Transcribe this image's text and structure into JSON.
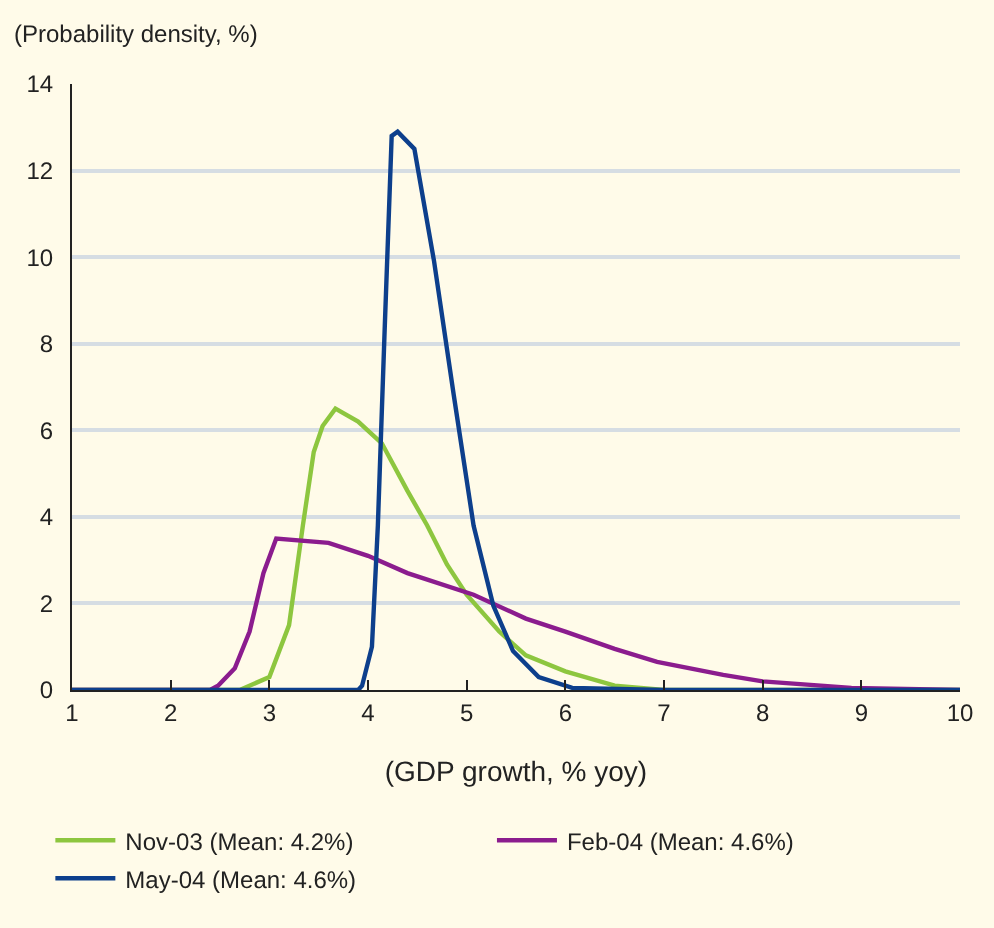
{
  "chart_data": {
    "type": "line",
    "ylabel": "(Probability density, %)",
    "xlabel": "(GDP growth, % yoy)",
    "xlim": [
      1,
      10
    ],
    "xticks": [
      1,
      2,
      3,
      4,
      5,
      6,
      7,
      8,
      9,
      10
    ],
    "ylim": [
      0,
      14
    ],
    "yticks": [
      0,
      2,
      4,
      6,
      8,
      10,
      12,
      14
    ],
    "grid": "y",
    "legend": "bottom",
    "line_style": "solid",
    "series": [
      {
        "name": "Nov-03 (Mean: 4.2%)",
        "color": "#8dc63f",
        "x": [
          1,
          2.7,
          3.0,
          3.2,
          3.34,
          3.45,
          3.54,
          3.67,
          3.9,
          4.14,
          4.4,
          4.6,
          4.8,
          5.0,
          5.33,
          5.6,
          6.0,
          6.5,
          7,
          10
        ],
        "values": [
          0,
          0,
          0.3,
          1.5,
          3.8,
          5.5,
          6.1,
          6.5,
          6.2,
          5.7,
          4.6,
          3.8,
          2.9,
          2.2,
          1.35,
          0.8,
          0.43,
          0.1,
          0,
          0
        ]
      },
      {
        "name": "Feb-04 (Mean: 4.6%)",
        "color": "#8b1c8e",
        "x": [
          1,
          2.4,
          2.48,
          2.65,
          2.8,
          2.94,
          3.07,
          3.6,
          4.0,
          4.4,
          5.07,
          5.6,
          6.0,
          6.5,
          6.93,
          7.6,
          8.0,
          8.9,
          10
        ],
        "values": [
          0,
          0,
          0.1,
          0.5,
          1.35,
          2.7,
          3.5,
          3.4,
          3.1,
          2.7,
          2.2,
          1.65,
          1.35,
          0.95,
          0.65,
          0.35,
          0.2,
          0.05,
          0
        ]
      },
      {
        "name": "May-04 (Mean: 4.6%)",
        "color": "#0d3f8c",
        "x": [
          1,
          3.9,
          3.94,
          4.04,
          4.1,
          4.17,
          4.24,
          4.3,
          4.47,
          4.67,
          4.87,
          5.07,
          5.27,
          5.47,
          5.73,
          6.07,
          7,
          10
        ],
        "values": [
          0,
          0,
          0.1,
          1.0,
          3.8,
          8.4,
          12.8,
          12.9,
          12.5,
          9.9,
          6.8,
          3.8,
          1.95,
          0.9,
          0.3,
          0.05,
          0,
          0
        ]
      }
    ]
  }
}
